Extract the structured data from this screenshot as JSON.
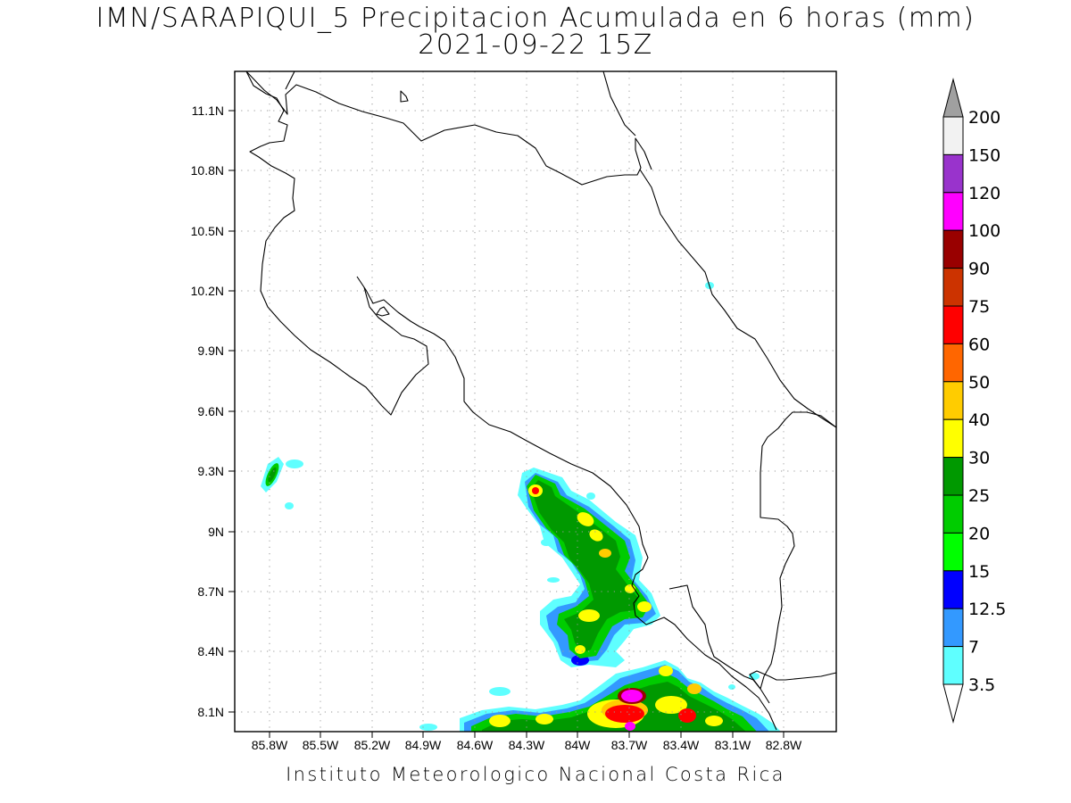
{
  "title": {
    "line1": "IMN/SARAPIQUI_5 Precipitacion Acumulada en 6 horas (mm)",
    "line2": "2021-09-22 15Z"
  },
  "footer": "Instituto Meteorologico Nacional Costa Rica",
  "map": {
    "lat_ticks": [
      "11.1N",
      "10.8N",
      "10.5N",
      "10.2N",
      "9.9N",
      "9.6N",
      "9.3N",
      "9N",
      "8.7N",
      "8.4N",
      "8.1N"
    ],
    "lon_ticks": [
      "85.8W",
      "85.5W",
      "85.2W",
      "84.9W",
      "84.6W",
      "84.3W",
      "84W",
      "83.7W",
      "83.4W",
      "83.1W",
      "82.8W"
    ],
    "grid": true,
    "coastline_color": "#000000"
  },
  "colorbar": {
    "labels": [
      "3.5",
      "7",
      "12.5",
      "15",
      "20",
      "25",
      "30",
      "40",
      "50",
      "60",
      "75",
      "90",
      "100",
      "120",
      "150",
      "200"
    ],
    "colors": [
      "#5fffff",
      "#3399ff",
      "#0000ff",
      "#00ff00",
      "#00cc00",
      "#009900",
      "#ffff00",
      "#ffcc00",
      "#ff6600",
      "#ff0000",
      "#cc3300",
      "#990000",
      "#ff00ff",
      "#9933cc",
      "#f2f2f2",
      "#a0a0a0"
    ],
    "under_color": "#ffffff",
    "over_color": "#a0a0a0"
  }
}
